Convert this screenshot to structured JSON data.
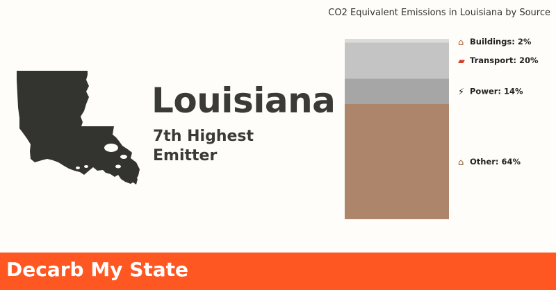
{
  "state": {
    "name": "Louisiana",
    "rank_text": "7th Highest Emitter"
  },
  "footer": {
    "title": "Decarb My State"
  },
  "chart_data": {
    "type": "bar",
    "stacked": true,
    "title": "CO2 Equivalent Emissions in Louisiana by Source",
    "unit": "%",
    "segments": [
      {
        "name": "Other",
        "value": 64,
        "label": "Other: 64%",
        "icon": "factory-icon",
        "color": "#ad856b"
      },
      {
        "name": "Power",
        "value": 14,
        "label": "Power: 14%",
        "icon": "plug-icon",
        "color": "#a6a6a6"
      },
      {
        "name": "Transport",
        "value": 20,
        "label": "Transport: 20%",
        "icon": "car-icon",
        "color": "#c4c4c4"
      },
      {
        "name": "Buildings",
        "value": 2,
        "label": "Buildings: 2%",
        "icon": "house-icon",
        "color": "#dcdcdc"
      }
    ]
  }
}
